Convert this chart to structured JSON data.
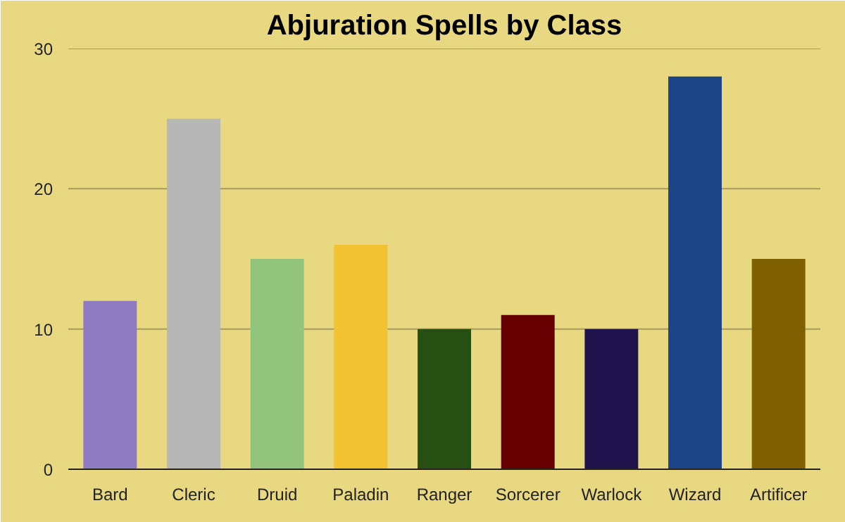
{
  "chart_data": {
    "type": "bar",
    "title": "Abjuration Spells by Class",
    "categories": [
      "Bard",
      "Cleric",
      "Druid",
      "Paladin",
      "Ranger",
      "Sorcerer",
      "Warlock",
      "Wizard",
      "Artificer"
    ],
    "values": [
      12,
      25,
      15,
      16,
      10,
      11,
      10,
      28,
      15
    ],
    "colors": [
      "#8e7cc3",
      "#b7b7b7",
      "#93c47d",
      "#f1c232",
      "#274e13",
      "#660000",
      "#20124d",
      "#1c4587",
      "#7f6000"
    ],
    "ylim": [
      0,
      30
    ],
    "yticks": [
      0,
      10,
      20,
      30
    ],
    "grid": "y"
  }
}
